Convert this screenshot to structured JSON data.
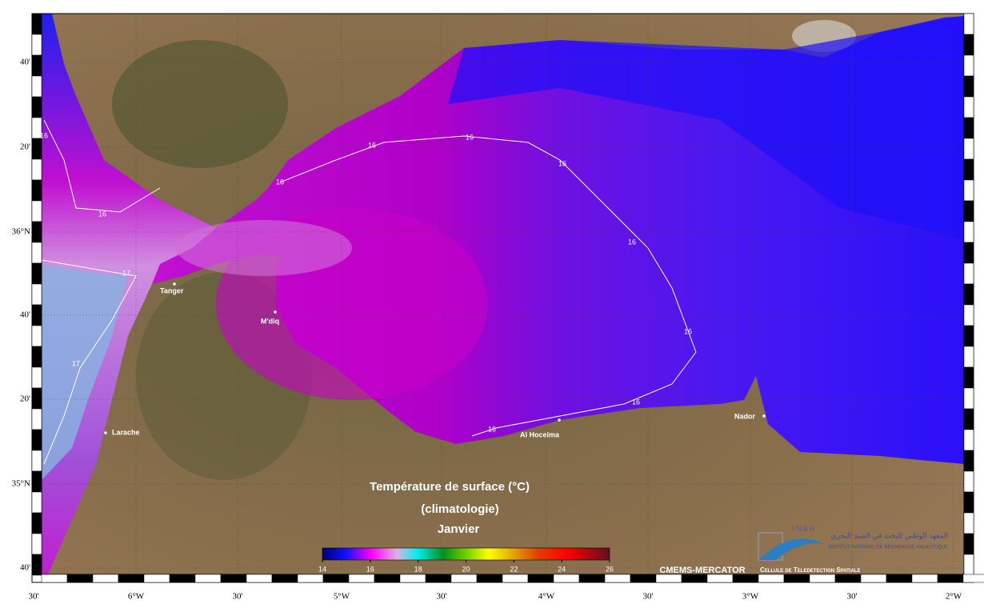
{
  "map": {
    "title": "Température de surface (°C)",
    "subtitle": "(climatologie)",
    "period": "Janvier",
    "lat_labels": [
      "40'",
      "20'",
      "36°N",
      "40'",
      "20'",
      "35°N",
      "40'"
    ],
    "lon_labels": [
      "30'",
      "6°W",
      "30'",
      "5°W",
      "30'",
      "4°W",
      "30'",
      "3°W",
      "30'",
      "2°W"
    ],
    "cities": [
      "Tanger",
      "M'diq",
      "Larache",
      "Al Hoceima",
      "Nador"
    ],
    "contour_labels": [
      16,
      16,
      16,
      16,
      16,
      16,
      16,
      16,
      16,
      16,
      17,
      17
    ],
    "colorbar": {
      "range": [
        14,
        26
      ],
      "ticks": [
        14,
        16,
        18,
        20,
        22,
        24,
        26
      ]
    },
    "source": "CMEMS-MERCATOR",
    "logo": {
      "acronym": "I N R H",
      "arabic": "المعهد الوطني للبحث في الصيد البحري",
      "name": "INSTITUT NATIONAL DE RECHERCHE HALIEUTIQUE",
      "unit": "Cellule de Teledetection Spatiale"
    }
  }
}
